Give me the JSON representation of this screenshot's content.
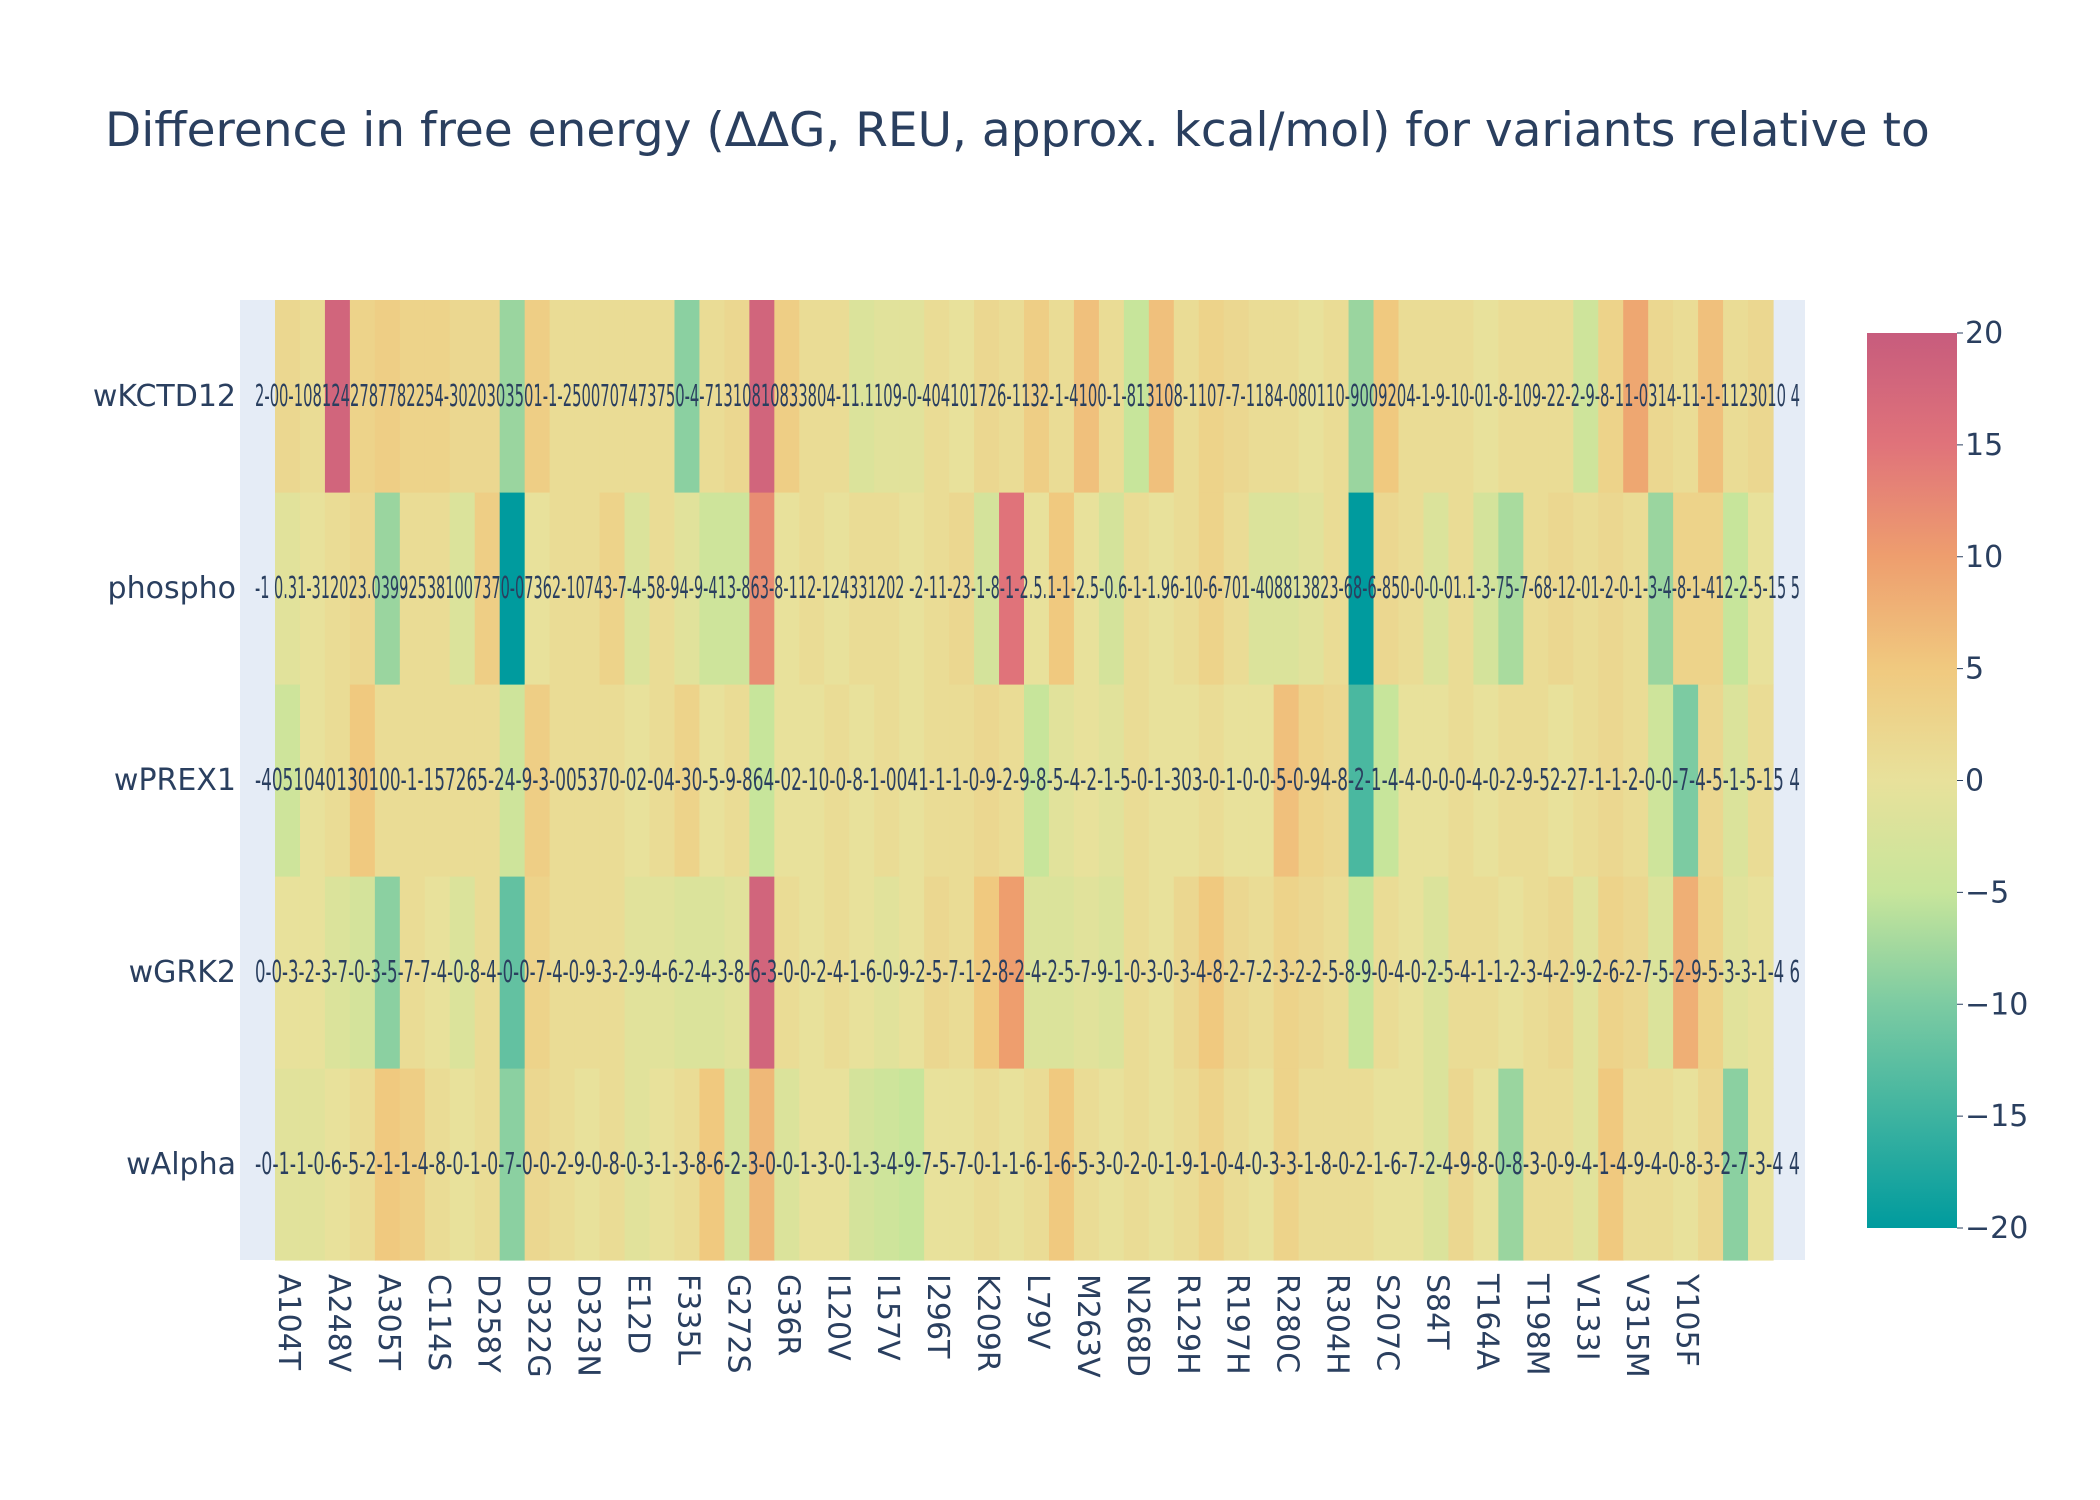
{
  "chart_data": {
    "type": "heatmap",
    "title": "Difference in free energy (ΔΔG, REU, approx. kcal/mol) for variants relative to",
    "xlabel": "",
    "ylabel": "",
    "rows": [
      "wAlpha",
      "wGRK2",
      "wPREX1",
      "phospho",
      "wKCTD12"
    ],
    "tick_labels": [
      "A104T",
      "A248V",
      "A305T",
      "C114S",
      "D258Y",
      "D322G",
      "D323N",
      "E12D",
      "F335L",
      "G272S",
      "G36R",
      "I120V",
      "I157V",
      "I296T",
      "K209R",
      "L79V",
      "M263V",
      "N268D",
      "R129H",
      "R197H",
      "R280C",
      "R304H",
      "S207C",
      "S84T",
      "T164A",
      "T198M",
      "V133I",
      "V315M",
      "Y105F"
    ],
    "columns": [
      {
        "tick": "A104T",
        "vals": [
          -1,
          0,
          -4,
          -1,
          2
        ]
      },
      {
        "tick": "",
        "vals": [
          -1,
          0,
          0,
          0,
          1
        ]
      },
      {
        "tick": "A248V",
        "vals": [
          0,
          -2,
          1,
          1,
          18
        ]
      },
      {
        "tick": "",
        "vals": [
          1,
          -3,
          5,
          2,
          3
        ]
      },
      {
        "tick": "A305T",
        "vals": [
          5,
          -9,
          1,
          -8,
          4
        ]
      },
      {
        "tick": "",
        "vals": [
          4,
          1,
          1,
          1,
          3
        ]
      },
      {
        "tick": "C114S",
        "vals": [
          1,
          0,
          1,
          1,
          3
        ]
      },
      {
        "tick": "",
        "vals": [
          0,
          -2,
          1,
          -2,
          2
        ]
      },
      {
        "tick": "D258Y",
        "vals": [
          1,
          1,
          1,
          4,
          2
        ]
      },
      {
        "tick": "",
        "vals": [
          -9,
          -12,
          -4,
          -20,
          -8
        ]
      },
      {
        "tick": "D322G",
        "vals": [
          2,
          3,
          4,
          0,
          4
        ]
      },
      {
        "tick": "",
        "vals": [
          1,
          1,
          1,
          1,
          1
        ]
      },
      {
        "tick": "D323N",
        "vals": [
          0,
          1,
          1,
          1,
          1
        ]
      },
      {
        "tick": "",
        "vals": [
          1,
          1,
          1,
          3,
          1
        ]
      },
      {
        "tick": "E12D",
        "vals": [
          -1,
          -1,
          0,
          -2,
          1
        ]
      },
      {
        "tick": "",
        "vals": [
          0,
          -1,
          1,
          1,
          1
        ]
      },
      {
        "tick": "F335L",
        "vals": [
          1,
          -2,
          3,
          -1,
          -9
        ]
      },
      {
        "tick": "",
        "vals": [
          5,
          -2,
          0,
          -4,
          1
        ]
      },
      {
        "tick": "G272S",
        "vals": [
          -3,
          -1,
          1,
          -4,
          2
        ]
      },
      {
        "tick": "",
        "vals": [
          7,
          18,
          -5,
          12,
          18
        ]
      },
      {
        "tick": "G36R",
        "vals": [
          -2,
          1,
          0,
          0,
          4
        ]
      },
      {
        "tick": "",
        "vals": [
          0,
          0,
          0,
          1,
          1
        ]
      },
      {
        "tick": "I120V",
        "vals": [
          0,
          1,
          1,
          0,
          1
        ]
      },
      {
        "tick": "",
        "vals": [
          -3,
          0,
          0,
          1,
          -2
        ]
      },
      {
        "tick": "I157V",
        "vals": [
          -4,
          -1,
          1,
          1,
          -1
        ]
      },
      {
        "tick": "",
        "vals": [
          -5,
          0,
          0,
          0,
          -1
        ]
      },
      {
        "tick": "I296T",
        "vals": [
          0,
          2,
          1,
          1,
          1
        ]
      },
      {
        "tick": "",
        "vals": [
          0,
          1,
          1,
          2,
          0
        ]
      },
      {
        "tick": "K209R",
        "vals": [
          1,
          5,
          2,
          -3,
          2
        ]
      },
      {
        "tick": "",
        "vals": [
          0,
          10,
          1,
          15,
          1
        ]
      },
      {
        "tick": "L79V",
        "vals": [
          1,
          -2,
          -5,
          0,
          4
        ]
      },
      {
        "tick": "",
        "vals": [
          5,
          -2,
          -1,
          5,
          1
        ]
      },
      {
        "tick": "M263V",
        "vals": [
          1,
          -1,
          0,
          0,
          6
        ]
      },
      {
        "tick": "",
        "vals": [
          0,
          -2,
          -1,
          -3,
          1
        ]
      },
      {
        "tick": "N268D",
        "vals": [
          1,
          1,
          1,
          1,
          -5
        ]
      },
      {
        "tick": "",
        "vals": [
          0,
          0,
          0,
          0,
          6
        ]
      },
      {
        "tick": "R129H",
        "vals": [
          1,
          2,
          0,
          1,
          1
        ]
      },
      {
        "tick": "",
        "vals": [
          3,
          5,
          1,
          3,
          3
        ]
      },
      {
        "tick": "R197H",
        "vals": [
          1,
          2,
          0,
          1,
          2
        ]
      },
      {
        "tick": "",
        "vals": [
          0,
          1,
          0,
          -2,
          1
        ]
      },
      {
        "tick": "R280C",
        "vals": [
          3,
          3,
          6,
          -2,
          1
        ]
      },
      {
        "tick": "",
        "vals": [
          1,
          2,
          3,
          -1,
          0
        ]
      },
      {
        "tick": "R304H",
        "vals": [
          1,
          1,
          2,
          1,
          1
        ]
      },
      {
        "tick": "",
        "vals": [
          1,
          -5,
          -14,
          -20,
          -8
        ]
      },
      {
        "tick": "S207C",
        "vals": [
          0,
          1,
          -5,
          2,
          5
        ]
      },
      {
        "tick": "",
        "vals": [
          0,
          0,
          0,
          1,
          1
        ]
      },
      {
        "tick": "S84T",
        "vals": [
          -2,
          -2,
          0,
          -2,
          1
        ]
      },
      {
        "tick": "",
        "vals": [
          2,
          1,
          1,
          1,
          1
        ]
      },
      {
        "tick": "T164A",
        "vals": [
          0,
          1,
          0,
          -3,
          0
        ]
      },
      {
        "tick": "",
        "vals": [
          -8,
          0,
          1,
          -7,
          1
        ]
      },
      {
        "tick": "T198M",
        "vals": [
          1,
          1,
          1,
          1,
          1
        ]
      },
      {
        "tick": "",
        "vals": [
          1,
          2,
          0,
          2,
          1
        ]
      },
      {
        "tick": "V133I",
        "vals": [
          -1,
          -1,
          1,
          1,
          -4
        ]
      },
      {
        "tick": "",
        "vals": [
          5,
          3,
          2,
          2,
          3
        ]
      },
      {
        "tick": "V315M",
        "vals": [
          1,
          2,
          1,
          1,
          9
        ]
      },
      {
        "tick": "",
        "vals": [
          1,
          -2,
          -4,
          -8,
          2
        ]
      },
      {
        "tick": "Y105F",
        "vals": [
          0,
          8,
          -10,
          3,
          1
        ]
      },
      {
        "tick": "",
        "vals": [
          2,
          3,
          2,
          3,
          6
        ]
      },
      {
        "tick": "",
        "vals": [
          -9,
          -1,
          -2,
          -5,
          1
        ]
      },
      {
        "tick": "",
        "vals": [
          0,
          0,
          1,
          0,
          2
        ]
      }
    ],
    "row_texts": {
      "wKCTD12": "2-00-1081242787782254-3020303501-1-2500707473750-4-71310810833804-11.1109-0-404101726-1132-1-4100-1-813108-1107-7-1184-080110-9009204-1-9-10-01-8-109-22-2-9-8-11-0314-11-1-1123010 4",
      "phospho": "-1 0.31-312023.039925381007370-07362-10743-7-4-58-94-9-413-863-8-112-124331202 -2-11-23-1-8-1-2.5.1-1-2.5-0.6-1-1.96-10-6-701-408813823-68-6-850-0-0-01.1-3-75-7-68-12-01-2-0-1-3-4-8-1-412-2-5-15 5",
      "wPREX1": "-4051040130100-1-157265-24-9-3-005370-02-04-30-5-9-864-02-10-0-8-1-0041-1-1-0-9-2-9-8-5-4-2-1-5-0-1-303-0-1-0-0-5-0-94-8-2-1-4-4-0-0-0-4-0-2-9-52-27-1-1-2-0-0-7-4-5-1-5-15 4",
      "wGRK2": "0-0-3-2-3-7-0-3-5-7-7-4-0-8-4-0-0-7-4-0-9-3-2-9-4-6-2-4-3-8-6-3-0-0-2-4-1-6-0-9-2-5-7-1-2-8-2-4-2-5-7-9-1-0-3-0-3-4-8-2-7-2-3-2-2-5-8-9-0-4-0-2-5-4-1-1-2-3-4-2-9-2-6-2-7-5-2-9-5-3-3-1-4 6",
      "wAlpha": "-0-1-1-0-6-5-2-1-1-4-8-0-1-0-7-0-0-2-9-0-8-0-3-1-3-8-6-2-3-0-0-1-3-0-1-3-4-9-7-5-7-0-1-1-6-1-6-5-3-0-2-0-1-9-1-0-4-0-3-3-1-8-0-2-1-6-7-2-4-9-8-0-8-3-0-9-4-1-4-9-4-0-8-3-2-7-3-4 4"
    },
    "colorscale": [
      [
        -20,
        "#009B9E"
      ],
      [
        -10,
        "#7CCBA2"
      ],
      [
        -5,
        "#C7E59B"
      ],
      [
        0,
        "#E8E19B"
      ],
      [
        5,
        "#F0C97F"
      ],
      [
        10,
        "#EE9E6E"
      ],
      [
        15,
        "#E0737A"
      ],
      [
        20,
        "#C75C7D"
      ]
    ],
    "zrange": [
      -20,
      20
    ],
    "colorbar_ticks": [
      "20",
      "15",
      "10",
      "5",
      "0",
      "−5",
      "−10",
      "−15",
      "−20"
    ],
    "colorbar_tick_values": [
      20,
      15,
      10,
      5,
      0,
      -5,
      -10,
      -15,
      -20
    ],
    "plot_bgcolor": "#E5ECF6"
  }
}
